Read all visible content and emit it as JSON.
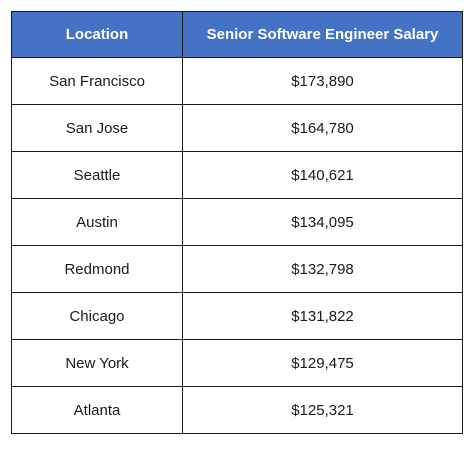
{
  "chart_data": {
    "type": "table",
    "columns": [
      "Location",
      "Senior Software Engineer Salary"
    ],
    "rows": [
      {
        "location": "San Francisco",
        "salary": "$173,890"
      },
      {
        "location": "San Jose",
        "salary": "$164,780"
      },
      {
        "location": "Seattle",
        "salary": "$140,621"
      },
      {
        "location": "Austin",
        "salary": "$134,095"
      },
      {
        "location": "Redmond",
        "salary": "$132,798"
      },
      {
        "location": "Chicago",
        "salary": "$131,822"
      },
      {
        "location": "New York",
        "salary": "$129,475"
      },
      {
        "location": "Atlanta",
        "salary": "$125,321"
      }
    ]
  },
  "colors": {
    "header_background": "#4472c4",
    "header_text": "#ffffff",
    "border": "#1a1a1a"
  }
}
